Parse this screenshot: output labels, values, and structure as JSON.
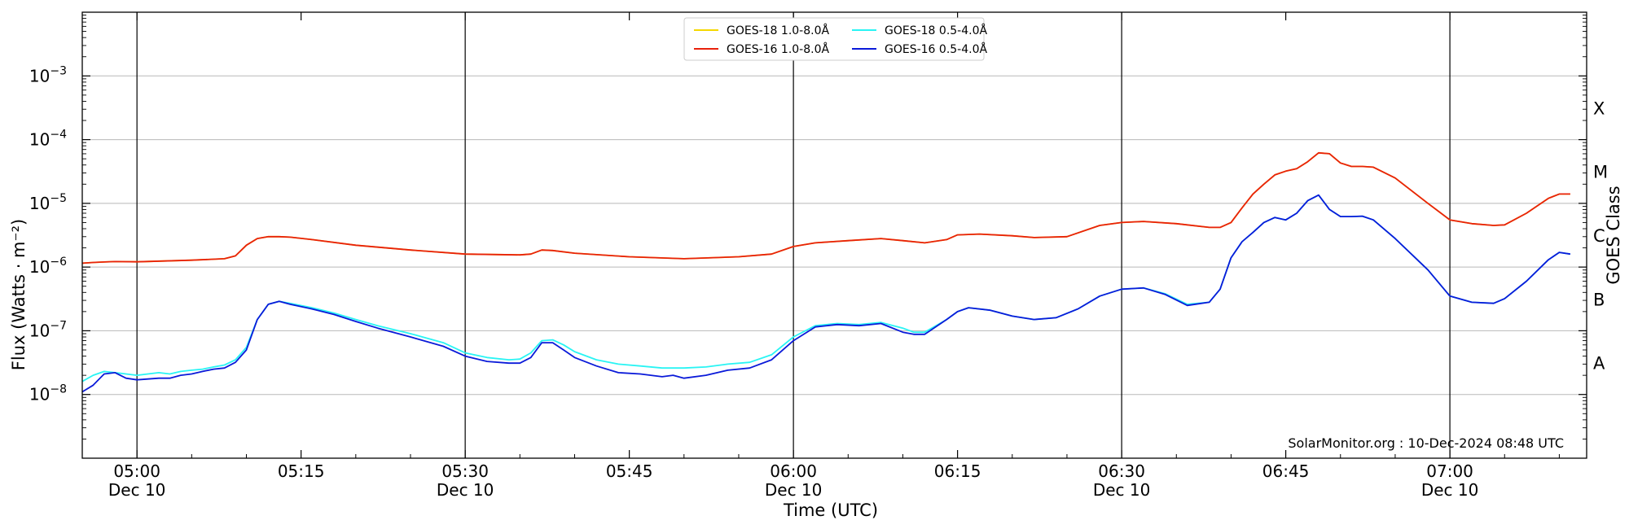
{
  "chart_data": {
    "type": "line",
    "x_unit": "minutes after 04:55 UTC, 10-Dec-2024",
    "xlabel": "Time (UTC)",
    "ylabel": "Flux (Watts · m⁻²)",
    "y2label": "GOES Class",
    "y_scale": "log",
    "ylim": [
      1e-09,
      0.01
    ],
    "xlim": [
      -5.0,
      132.5
    ],
    "x_ticks": [
      {
        "x": 0,
        "label": "05:00",
        "sub": "Dec 10"
      },
      {
        "x": 15,
        "label": "05:15",
        "sub": ""
      },
      {
        "x": 30,
        "label": "05:30",
        "sub": "Dec 10"
      },
      {
        "x": 45,
        "label": "05:45",
        "sub": ""
      },
      {
        "x": 60,
        "label": "06:00",
        "sub": "Dec 10"
      },
      {
        "x": 75,
        "label": "06:15",
        "sub": ""
      },
      {
        "x": 90,
        "label": "06:30",
        "sub": "Dec 10"
      },
      {
        "x": 105,
        "label": "06:45",
        "sub": ""
      },
      {
        "x": 120,
        "label": "07:00",
        "sub": "Dec 10"
      }
    ],
    "y_ticks": [
      {
        "exp": -8,
        "label": "10",
        "sup": "−8"
      },
      {
        "exp": -7,
        "label": "10",
        "sup": "−7"
      },
      {
        "exp": -6,
        "label": "10",
        "sup": "−6"
      },
      {
        "exp": -5,
        "label": "10",
        "sup": "−5"
      },
      {
        "exp": -4,
        "label": "10",
        "sup": "−4"
      },
      {
        "exp": -3,
        "label": "10",
        "sup": "−3"
      }
    ],
    "goes_classes": [
      {
        "label": "A",
        "exp": -7.5
      },
      {
        "label": "B",
        "exp": -6.5
      },
      {
        "label": "C",
        "exp": -5.5
      },
      {
        "label": "M",
        "exp": -4.5
      },
      {
        "label": "X",
        "exp": -3.5
      }
    ],
    "day_lines": [
      0,
      30,
      60,
      90,
      120
    ],
    "grid": true,
    "legend_position": "top-center",
    "credit": "SolarMonitor.org : 10-Dec-2024 08:48 UTC",
    "series": [
      {
        "name": "GOES-18 1.0-8.0Å",
        "color": "#f5d800",
        "x": [
          -5,
          -4,
          -3,
          -2,
          0,
          5,
          8,
          9,
          10,
          11,
          12,
          13,
          14,
          16,
          20,
          25,
          30,
          35,
          36,
          37,
          38,
          40,
          45,
          50,
          55,
          58,
          60,
          62,
          65,
          68,
          70,
          72,
          74,
          75,
          77,
          80,
          82,
          85,
          88,
          90,
          92,
          95,
          98,
          99,
          100,
          101,
          102,
          103,
          104,
          105,
          106,
          107,
          108,
          109,
          110,
          111,
          112,
          113,
          115,
          118,
          120,
          122,
          124,
          125,
          127,
          129,
          130,
          131
        ],
        "y": [
          1.15e-06,
          1.18e-06,
          1.2e-06,
          1.22e-06,
          1.21e-06,
          1.28e-06,
          1.35e-06,
          1.5e-06,
          2.2e-06,
          2.8e-06,
          3e-06,
          3e-06,
          2.95e-06,
          2.7e-06,
          2.2e-06,
          1.85e-06,
          1.6e-06,
          1.55e-06,
          1.6e-06,
          1.85e-06,
          1.82e-06,
          1.65e-06,
          1.45e-06,
          1.35e-06,
          1.45e-06,
          1.6e-06,
          2.1e-06,
          2.4e-06,
          2.6e-06,
          2.8e-06,
          2.6e-06,
          2.4e-06,
          2.7e-06,
          3.2e-06,
          3.3e-06,
          3.1e-06,
          2.9e-06,
          3e-06,
          4.5e-06,
          5e-06,
          5.2e-06,
          4.8e-06,
          4.2e-06,
          4.2e-06,
          5e-06,
          8.5e-06,
          1.4e-05,
          2e-05,
          2.8e-05,
          3.2e-05,
          3.5e-05,
          4.5e-05,
          6.2e-05,
          6e-05,
          4.3e-05,
          3.8e-05,
          3.8e-05,
          3.7e-05,
          2.5e-05,
          1e-05,
          5.5e-06,
          4.8e-06,
          4.5e-06,
          4.6e-06,
          7e-06,
          1.2e-05,
          1.4e-05,
          1.4e-05
        ]
      },
      {
        "name": "GOES-16 1.0-8.0Å",
        "color": "#e8210b",
        "x": [
          -5,
          -4,
          -3,
          -2,
          0,
          5,
          8,
          9,
          10,
          11,
          12,
          13,
          14,
          16,
          20,
          25,
          30,
          35,
          36,
          37,
          38,
          40,
          45,
          50,
          55,
          58,
          60,
          62,
          65,
          68,
          70,
          72,
          74,
          75,
          77,
          80,
          82,
          85,
          88,
          90,
          92,
          95,
          98,
          99,
          100,
          101,
          102,
          103,
          104,
          105,
          106,
          107,
          108,
          109,
          110,
          111,
          112,
          113,
          115,
          118,
          120,
          122,
          124,
          125,
          127,
          129,
          130,
          131
        ],
        "y": [
          1.15e-06,
          1.18e-06,
          1.2e-06,
          1.22e-06,
          1.21e-06,
          1.28e-06,
          1.35e-06,
          1.5e-06,
          2.2e-06,
          2.8e-06,
          3e-06,
          3e-06,
          2.95e-06,
          2.7e-06,
          2.2e-06,
          1.85e-06,
          1.6e-06,
          1.55e-06,
          1.6e-06,
          1.85e-06,
          1.82e-06,
          1.65e-06,
          1.45e-06,
          1.35e-06,
          1.45e-06,
          1.6e-06,
          2.1e-06,
          2.4e-06,
          2.6e-06,
          2.8e-06,
          2.6e-06,
          2.4e-06,
          2.7e-06,
          3.2e-06,
          3.3e-06,
          3.1e-06,
          2.9e-06,
          3e-06,
          4.5e-06,
          5e-06,
          5.2e-06,
          4.8e-06,
          4.2e-06,
          4.2e-06,
          5e-06,
          8.5e-06,
          1.4e-05,
          2e-05,
          2.8e-05,
          3.2e-05,
          3.5e-05,
          4.5e-05,
          6.2e-05,
          6e-05,
          4.3e-05,
          3.8e-05,
          3.8e-05,
          3.7e-05,
          2.5e-05,
          1e-05,
          5.5e-06,
          4.8e-06,
          4.5e-06,
          4.6e-06,
          7e-06,
          1.2e-05,
          1.4e-05,
          1.4e-05
        ]
      },
      {
        "name": "GOES-18 0.5-4.0Å",
        "color": "#29f4f4",
        "x": [
          -5,
          -4,
          -3,
          -2,
          -1,
          0,
          1,
          2,
          3,
          4,
          5,
          6,
          7,
          8,
          9,
          10,
          11,
          12,
          13,
          14,
          16,
          18,
          20,
          22,
          25,
          28,
          30,
          32,
          34,
          35,
          36,
          37,
          38,
          39,
          40,
          42,
          44,
          46,
          48,
          50,
          52,
          54,
          56,
          58,
          60,
          62,
          64,
          66,
          68,
          70,
          71,
          72,
          74,
          75,
          76,
          78,
          80,
          82,
          84,
          86,
          88,
          90,
          92,
          94,
          96,
          98,
          99,
          100,
          101,
          102,
          103,
          104,
          105,
          106,
          107,
          108,
          109,
          110,
          111,
          112,
          113,
          115,
          118,
          120,
          122,
          124,
          125,
          127,
          129,
          130,
          131
        ],
        "y": [
          1.6e-08,
          2e-08,
          2.3e-08,
          2.2e-08,
          2.1e-08,
          2e-08,
          2.1e-08,
          2.2e-08,
          2.1e-08,
          2.3e-08,
          2.4e-08,
          2.5e-08,
          2.7e-08,
          2.9e-08,
          3.5e-08,
          5.5e-08,
          1.5e-07,
          2.6e-07,
          2.9e-07,
          2.7e-07,
          2.3e-07,
          1.9e-07,
          1.5e-07,
          1.2e-07,
          9e-08,
          6.5e-08,
          4.5e-08,
          3.8e-08,
          3.5e-08,
          3.6e-08,
          4.5e-08,
          7e-08,
          7.2e-08,
          6e-08,
          4.7e-08,
          3.5e-08,
          3e-08,
          2.8e-08,
          2.6e-08,
          2.6e-08,
          2.7e-08,
          3e-08,
          3.2e-08,
          4.2e-08,
          8e-08,
          1.2e-07,
          1.3e-07,
          1.25e-07,
          1.35e-07,
          1.1e-07,
          9.5e-08,
          9.5e-08,
          1.5e-07,
          2e-07,
          2.3e-07,
          2.1e-07,
          1.7e-07,
          1.5e-07,
          1.6e-07,
          2.2e-07,
          3.5e-07,
          4.5e-07,
          4.7e-07,
          3.8e-07,
          2.6e-07,
          2.8e-07,
          4.5e-07,
          1.4e-06,
          2.5e-06,
          3.5e-06,
          5e-06,
          6e-06,
          5.5e-06,
          7e-06,
          1.1e-05,
          1.35e-05,
          8e-06,
          6.2e-06,
          6.2e-06,
          6.3e-06,
          5.5e-06,
          2.8e-06,
          9e-07,
          3.5e-07,
          2.8e-07,
          2.7e-07,
          3.2e-07,
          6e-07,
          1.3e-06,
          1.7e-06,
          1.6e-06
        ]
      },
      {
        "name": "GOES-16 0.5-4.0Å",
        "color": "#0a1ad9",
        "x": [
          -5,
          -4,
          -3,
          -2,
          -1,
          0,
          1,
          2,
          3,
          4,
          5,
          6,
          7,
          8,
          9,
          10,
          11,
          12,
          13,
          14,
          16,
          18,
          20,
          22,
          25,
          28,
          30,
          32,
          34,
          35,
          36,
          37,
          38,
          39,
          40,
          42,
          44,
          46,
          48,
          49,
          50,
          52,
          54,
          56,
          58,
          60,
          62,
          64,
          66,
          68,
          70,
          71,
          72,
          74,
          75,
          76,
          78,
          80,
          82,
          84,
          86,
          88,
          90,
          92,
          94,
          96,
          98,
          99,
          100,
          101,
          102,
          103,
          104,
          105,
          106,
          107,
          108,
          109,
          110,
          111,
          112,
          113,
          115,
          118,
          120,
          122,
          124,
          125,
          127,
          129,
          130,
          131
        ],
        "y": [
          1.1e-08,
          1.4e-08,
          2.1e-08,
          2.2e-08,
          1.8e-08,
          1.7e-08,
          1.75e-08,
          1.8e-08,
          1.8e-08,
          2e-08,
          2.1e-08,
          2.3e-08,
          2.5e-08,
          2.6e-08,
          3.2e-08,
          5e-08,
          1.5e-07,
          2.6e-07,
          2.9e-07,
          2.6e-07,
          2.2e-07,
          1.8e-07,
          1.4e-07,
          1.1e-07,
          8e-08,
          5.7e-08,
          4e-08,
          3.3e-08,
          3.1e-08,
          3.1e-08,
          3.8e-08,
          6.5e-08,
          6.5e-08,
          5e-08,
          3.8e-08,
          2.8e-08,
          2.2e-08,
          2.1e-08,
          1.9e-08,
          2e-08,
          1.8e-08,
          2e-08,
          2.4e-08,
          2.6e-08,
          3.5e-08,
          7e-08,
          1.15e-07,
          1.25e-07,
          1.2e-07,
          1.3e-07,
          9.5e-08,
          8.8e-08,
          8.8e-08,
          1.5e-07,
          2e-07,
          2.3e-07,
          2.1e-07,
          1.7e-07,
          1.5e-07,
          1.6e-07,
          2.2e-07,
          3.5e-07,
          4.5e-07,
          4.7e-07,
          3.7e-07,
          2.5e-07,
          2.8e-07,
          4.5e-07,
          1.4e-06,
          2.5e-06,
          3.5e-06,
          5e-06,
          6e-06,
          5.5e-06,
          7e-06,
          1.1e-05,
          1.35e-05,
          8e-06,
          6.2e-06,
          6.2e-06,
          6.3e-06,
          5.5e-06,
          2.8e-06,
          9e-07,
          3.5e-07,
          2.8e-07,
          2.7e-07,
          3.2e-07,
          6e-07,
          1.3e-06,
          1.7e-06,
          1.6e-06
        ]
      }
    ]
  }
}
